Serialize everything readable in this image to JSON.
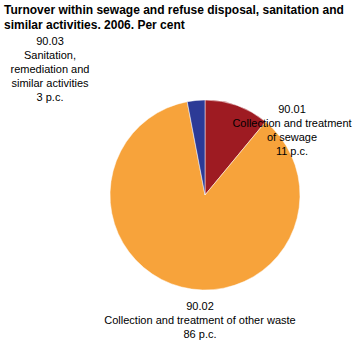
{
  "chart_data": {
    "type": "pie",
    "title": "Turnover within sewage and refuse disposal, sanitation and similar activities. 2006. Per cent",
    "categories": [
      "90.01 Collection and treatment of sewage",
      "90.02 Collection and treatment of other waste",
      "90.03 Sanitation, remediation and similar activities"
    ],
    "values": [
      11,
      86,
      3
    ],
    "value_labels": [
      "11 p.c.",
      "86 p.c.",
      "3 p.c."
    ],
    "colors": [
      "#9e1b22",
      "#f7a33b",
      "#2c3a96"
    ],
    "data_labels": true
  }
}
